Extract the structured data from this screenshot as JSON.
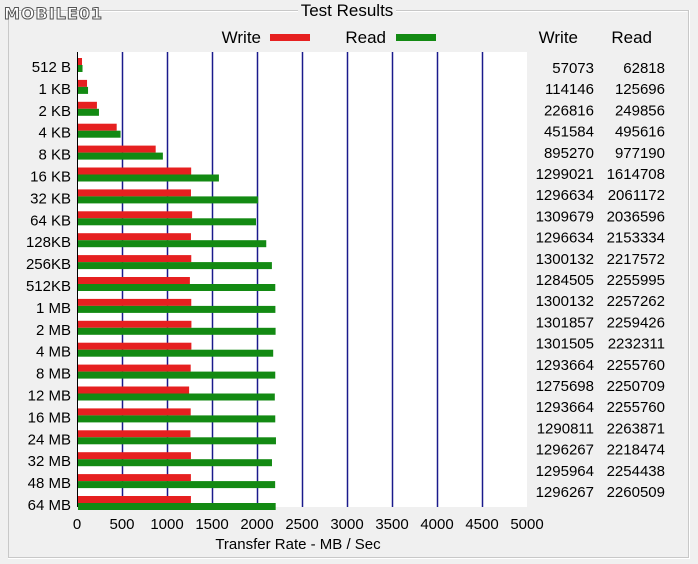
{
  "window": {
    "group_title": "Test Results",
    "logo_text": "MOBILE01"
  },
  "columns": {
    "write_header": "Write",
    "read_header": "Read"
  },
  "chart_data": {
    "type": "bar",
    "orientation": "horizontal",
    "title": "Test Results",
    "xlabel": "Transfer Rate - MB / Sec",
    "ylabel": "",
    "xlim": [
      0,
      5000
    ],
    "x_ticks": [
      "0",
      "500",
      "1000",
      "1500",
      "2000",
      "2500",
      "3000",
      "3500",
      "4000",
      "4500",
      "5000"
    ],
    "grid": "vertical",
    "legend_position": "top",
    "categories": [
      "512 B",
      "1 KB",
      "2 KB",
      "4 KB",
      "8 KB",
      "16 KB",
      "32 KB",
      "64 KB",
      "128KB",
      "256KB",
      "512KB",
      "1 MB",
      "2 MB",
      "4 MB",
      "8 MB",
      "12 MB",
      "16 MB",
      "24 MB",
      "32 MB",
      "48 MB",
      "64 MB"
    ],
    "series": [
      {
        "name": "Write",
        "color": "#e62020",
        "values": [
          55.7,
          111.5,
          221.5,
          441.0,
          874.3,
          1268.6,
          1266.2,
          1279.0,
          1266.2,
          1269.7,
          1254.4,
          1269.7,
          1271.3,
          1271.0,
          1263.3,
          1245.8,
          1263.3,
          1260.6,
          1265.9,
          1265.6,
          1265.9
        ],
        "labels": [
          "57073",
          "114146",
          "226816",
          "451584",
          "895270",
          "1299021",
          "1296634",
          "1309679",
          "1296634",
          "1300132",
          "1284505",
          "1300132",
          "1301857",
          "1301505",
          "1293664",
          "1275698",
          "1293664",
          "1290811",
          "1296267",
          "1295964",
          "1296267"
        ]
      },
      {
        "name": "Read",
        "color": "#138a13",
        "values": [
          61.3,
          122.7,
          244.0,
          484.0,
          954.3,
          1576.9,
          2012.9,
          1988.9,
          2102.9,
          2165.6,
          2203.1,
          2204.4,
          2206.5,
          2180.0,
          2202.9,
          2197.9,
          2202.9,
          2210.8,
          2166.5,
          2201.6,
          2207.5
        ],
        "labels": [
          "62818",
          "125696",
          "249856",
          "495616",
          "977190",
          "1614708",
          "2061172",
          "2036596",
          "2153334",
          "2217572",
          "2255995",
          "2257262",
          "2259426",
          "2232311",
          "2255760",
          "2250709",
          "2255760",
          "2263871",
          "2218474",
          "2254438",
          "2260509"
        ]
      }
    ]
  }
}
